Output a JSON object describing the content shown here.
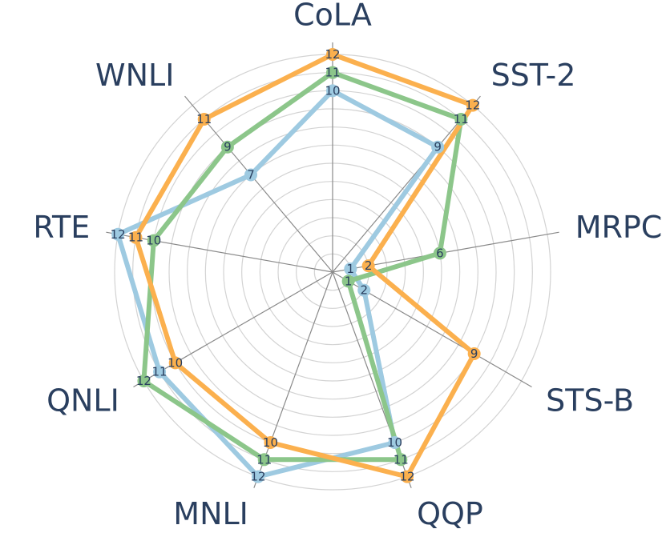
{
  "chart_data": {
    "type": "radar",
    "title": "",
    "axes": [
      "CoLA",
      "SST-2",
      "MRPC",
      "STS-B",
      "QQP",
      "MNLI",
      "QNLI",
      "RTE",
      "WNLI"
    ],
    "radial_range": [
      0,
      12
    ],
    "grid": true,
    "series": [
      {
        "values": [
          10,
          9,
          1,
          2,
          10,
          12,
          11,
          12,
          7
        ],
        "color": "#9ecae1"
      },
      {
        "values": [
          11,
          11,
          6,
          1,
          11,
          11,
          12,
          10,
          9
        ],
        "color": "#8cc68a"
      },
      {
        "values": [
          12,
          12,
          2,
          9,
          12,
          10,
          10,
          11,
          11
        ],
        "color": "#fbb04e"
      }
    ]
  }
}
